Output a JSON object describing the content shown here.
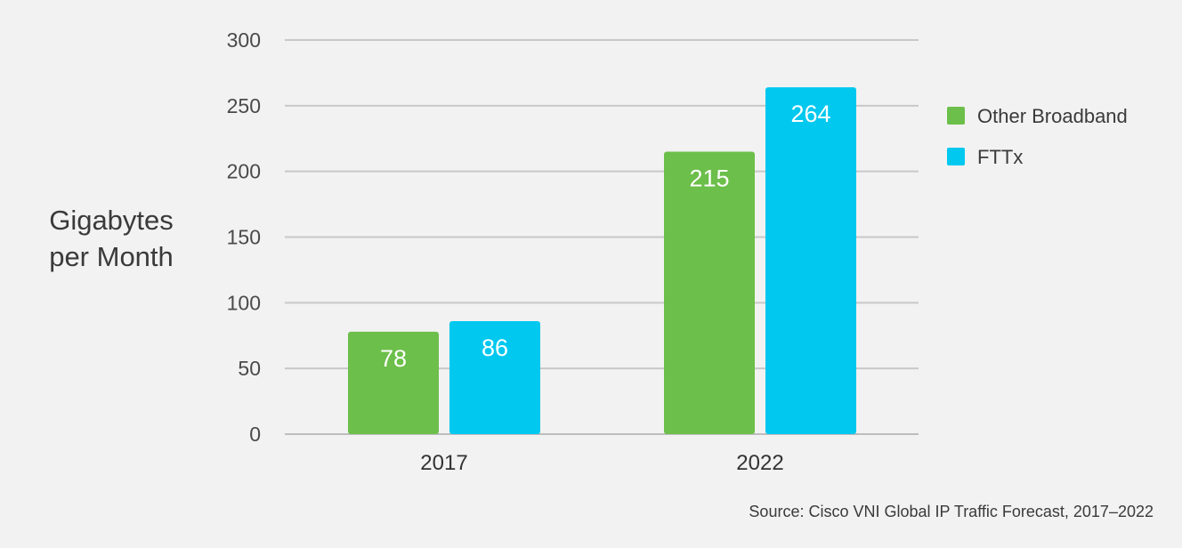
{
  "chart_data": {
    "type": "bar",
    "categories": [
      "2017",
      "2022"
    ],
    "series": [
      {
        "name": "Other Broadband",
        "values": [
          78,
          215
        ],
        "color": "#6cbf4a"
      },
      {
        "name": "FTTx",
        "values": [
          86,
          264
        ],
        "color": "#00c8ef"
      }
    ],
    "y_ticks": [
      "0",
      "50",
      "100",
      "150",
      "200",
      "250",
      "300"
    ],
    "ylim": [
      0,
      300
    ],
    "ylabel_lines": [
      "Gigabytes",
      "per Month"
    ],
    "grid": true,
    "legend": "right",
    "data_labels": true,
    "source": "Source: Cisco VNI Global IP Traffic Forecast, 2017–2022"
  }
}
